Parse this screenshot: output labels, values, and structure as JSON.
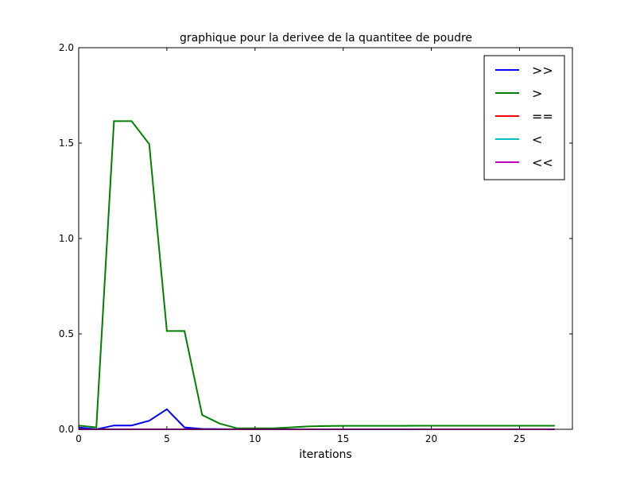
{
  "chart_data": {
    "type": "line",
    "title": "graphique pour la derivee de la quantitee de poudre",
    "xlabel": "iterations",
    "ylabel": "",
    "xlim": [
      0,
      28
    ],
    "ylim": [
      0,
      2.0
    ],
    "xticks": [
      0,
      5,
      10,
      15,
      20,
      25
    ],
    "yticks": [
      0.0,
      0.5,
      1.0,
      1.5,
      2.0
    ],
    "grid": false,
    "legend_position": "top-right",
    "x": [
      0,
      1,
      2,
      3,
      4,
      5,
      6,
      7,
      8,
      9,
      10,
      11,
      12,
      13,
      14,
      15,
      16,
      17,
      18,
      19,
      20,
      21,
      22,
      23,
      24,
      25,
      26,
      27
    ],
    "series": [
      {
        "name": ">>",
        "color": "#0000ff",
        "values": [
          0.01,
          0.0,
          0.02,
          0.02,
          0.045,
          0.105,
          0.01,
          0.002,
          0.001,
          0.0,
          0.0,
          0.0,
          0.0,
          0.0,
          0.0,
          0.0,
          0.0,
          0.0,
          0.0,
          0.0,
          0.0,
          0.0,
          0.0,
          0.0,
          0.0,
          0.0,
          0.0,
          0.0
        ]
      },
      {
        "name": ">",
        "color": "#008000",
        "values": [
          0.02,
          0.01,
          1.615,
          1.615,
          1.495,
          0.515,
          0.515,
          0.075,
          0.03,
          0.005,
          0.005,
          0.005,
          0.01,
          0.015,
          0.017,
          0.018,
          0.018,
          0.018,
          0.018,
          0.019,
          0.019,
          0.019,
          0.019,
          0.019,
          0.019,
          0.019,
          0.019,
          0.019
        ]
      },
      {
        "name": "==",
        "color": "#ff0000",
        "values": [
          0,
          0,
          0,
          0,
          0,
          0,
          0,
          0,
          0,
          0,
          0,
          0,
          0,
          0,
          0,
          0,
          0,
          0,
          0,
          0,
          0,
          0,
          0,
          0,
          0,
          0,
          0,
          0
        ]
      },
      {
        "name": "<",
        "color": "#00bfbf",
        "values": [
          0,
          0,
          0,
          0,
          0,
          0,
          0,
          0,
          0,
          0,
          0,
          0,
          0,
          0,
          0,
          0,
          0,
          0,
          0,
          0,
          0,
          0,
          0,
          0,
          0,
          0,
          0,
          0
        ]
      },
      {
        "name": "<<",
        "color": "#bf00bf",
        "values": [
          0,
          0,
          0,
          0,
          0,
          0,
          0,
          0,
          0,
          0,
          0,
          0,
          0,
          0,
          0,
          0,
          0,
          0,
          0,
          0,
          0,
          0,
          0,
          0,
          0,
          0,
          0,
          0
        ]
      }
    ]
  }
}
